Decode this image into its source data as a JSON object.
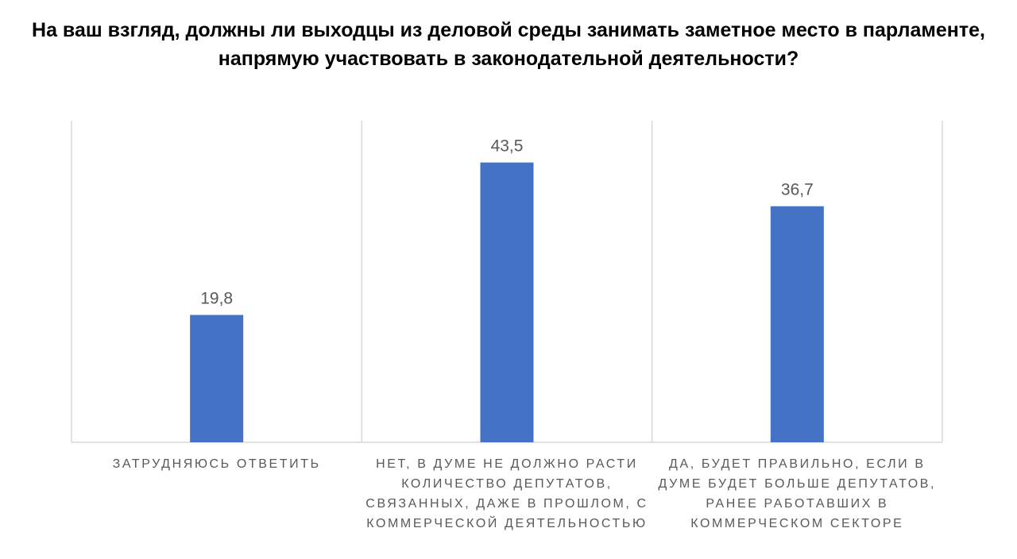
{
  "chart_data": {
    "type": "bar",
    "title": "На ваш взгляд, должны ли выходцы из деловой среды занимать заметное место в парламенте, напрямую участвовать в законодательной деятельности?",
    "categories": [
      "ЗАТРУДНЯЮСЬ ОТВЕТИТЬ",
      "НЕТ, В ДУМЕ НЕ ДОЛЖНО РАСТИ КОЛИЧЕСТВО ДЕПУТАТОВ, СВЯЗАННЫХ, ДАЖЕ В ПРОШЛОМ, С КОММЕРЧЕСКОЙ ДЕЯТЕЛЬНОСТЬЮ",
      "ДА, БУДЕТ ПРАВИЛЬНО, ЕСЛИ В ДУМЕ БУДЕТ БОЛЬШЕ ДЕПУТАТОВ, РАНЕЕ РАБОТАВШИХ В КОММЕРЧЕСКОМ СЕКТОРЕ"
    ],
    "values": [
      19.8,
      43.5,
      36.7
    ],
    "data_labels": [
      "19,8",
      "43,5",
      "36,7"
    ],
    "xlabel": "",
    "ylabel": "",
    "ylim": [
      0,
      50
    ],
    "grid": "vertical category separators",
    "legend": "none",
    "colors": {
      "bar": "#4472C4",
      "label": "#595959",
      "grid": "#D9D9D9"
    }
  }
}
